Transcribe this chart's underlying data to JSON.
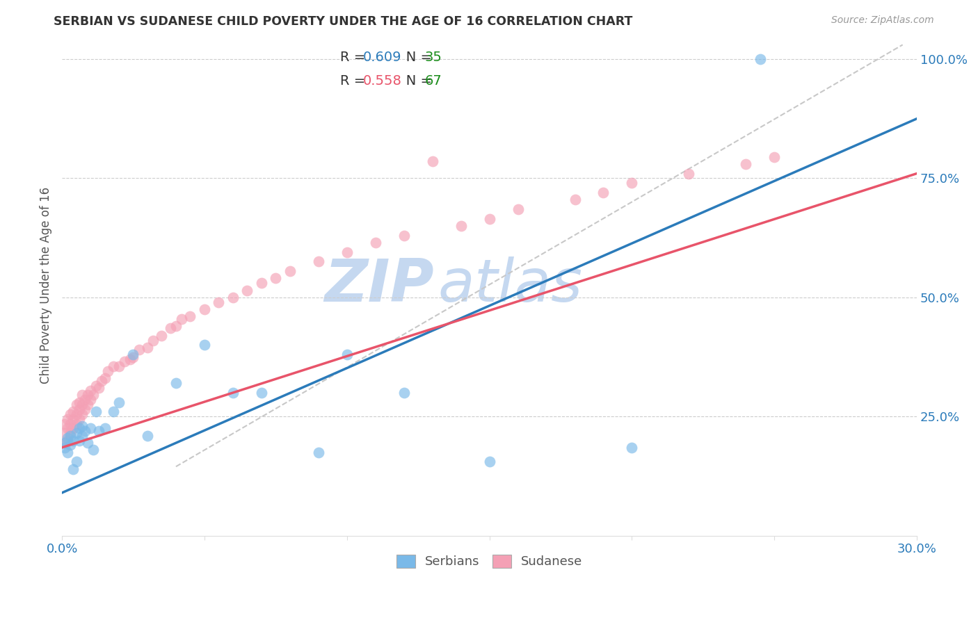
{
  "title": "SERBIAN VS SUDANESE CHILD POVERTY UNDER THE AGE OF 16 CORRELATION CHART",
  "source": "Source: ZipAtlas.com",
  "ylabel_label": "Child Poverty Under the Age of 16",
  "xlim": [
    0.0,
    0.3
  ],
  "ylim": [
    0.0,
    1.05
  ],
  "serbian_color": "#7ab9e8",
  "sudanese_color": "#f4a0b5",
  "serbian_line_color": "#2b7bba",
  "sudanese_line_color": "#e8546a",
  "diagonal_color": "#c8c8c8",
  "r_serbian": "0.609",
  "n_serbian": "35",
  "r_sudanese": "0.558",
  "n_sudanese": "67",
  "watermark_zip": "ZIP",
  "watermark_atlas": "atlas",
  "watermark_color_zip": "#c5d8f0",
  "watermark_color_atlas": "#c5d8f0",
  "label_color": "#2b7bba",
  "n_color": "#1a8c1a",
  "serb_x": [
    0.001,
    0.001,
    0.002,
    0.002,
    0.003,
    0.003,
    0.004,
    0.004,
    0.005,
    0.005,
    0.006,
    0.006,
    0.007,
    0.007,
    0.008,
    0.009,
    0.01,
    0.011,
    0.012,
    0.013,
    0.015,
    0.018,
    0.02,
    0.025,
    0.03,
    0.04,
    0.05,
    0.06,
    0.07,
    0.09,
    0.1,
    0.12,
    0.15,
    0.2,
    0.245
  ],
  "serb_y": [
    0.185,
    0.195,
    0.175,
    0.205,
    0.19,
    0.21,
    0.14,
    0.2,
    0.155,
    0.215,
    0.2,
    0.225,
    0.21,
    0.23,
    0.22,
    0.195,
    0.225,
    0.18,
    0.26,
    0.22,
    0.225,
    0.26,
    0.28,
    0.38,
    0.21,
    0.32,
    0.4,
    0.3,
    0.3,
    0.175,
    0.38,
    0.3,
    0.155,
    0.185,
    1.0
  ],
  "sud_x": [
    0.001,
    0.001,
    0.001,
    0.002,
    0.002,
    0.002,
    0.003,
    0.003,
    0.003,
    0.004,
    0.004,
    0.004,
    0.005,
    0.005,
    0.005,
    0.006,
    0.006,
    0.006,
    0.007,
    0.007,
    0.007,
    0.008,
    0.008,
    0.009,
    0.009,
    0.01,
    0.01,
    0.011,
    0.012,
    0.013,
    0.014,
    0.015,
    0.016,
    0.018,
    0.02,
    0.022,
    0.024,
    0.025,
    0.027,
    0.03,
    0.032,
    0.035,
    0.038,
    0.04,
    0.042,
    0.045,
    0.05,
    0.055,
    0.06,
    0.065,
    0.07,
    0.075,
    0.08,
    0.09,
    0.1,
    0.11,
    0.12,
    0.13,
    0.14,
    0.15,
    0.16,
    0.18,
    0.19,
    0.2,
    0.22,
    0.24,
    0.25
  ],
  "sud_y": [
    0.195,
    0.215,
    0.235,
    0.2,
    0.225,
    0.245,
    0.215,
    0.235,
    0.255,
    0.225,
    0.245,
    0.26,
    0.235,
    0.255,
    0.275,
    0.245,
    0.265,
    0.28,
    0.255,
    0.275,
    0.295,
    0.265,
    0.285,
    0.275,
    0.295,
    0.285,
    0.305,
    0.295,
    0.315,
    0.31,
    0.325,
    0.33,
    0.345,
    0.355,
    0.355,
    0.365,
    0.37,
    0.375,
    0.39,
    0.395,
    0.41,
    0.42,
    0.435,
    0.44,
    0.455,
    0.46,
    0.475,
    0.49,
    0.5,
    0.515,
    0.53,
    0.54,
    0.555,
    0.575,
    0.595,
    0.615,
    0.63,
    0.785,
    0.65,
    0.665,
    0.685,
    0.705,
    0.72,
    0.74,
    0.76,
    0.78,
    0.795
  ],
  "serb_line": [
    [
      -0.005,
      0.3
    ],
    [
      0.09,
      0.875
    ]
  ],
  "sud_line": [
    [
      -0.005,
      0.185
    ],
    [
      0.3,
      0.76
    ]
  ],
  "diag_line": [
    [
      0.04,
      0.155
    ],
    [
      0.3,
      1.01
    ]
  ]
}
